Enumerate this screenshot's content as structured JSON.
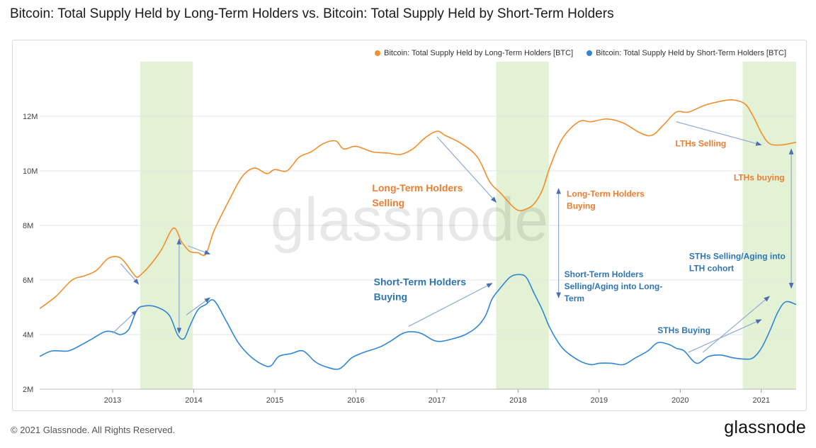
{
  "page": {
    "title": "Bitcoin: Total Supply Held by Long-Term Holders vs. Bitcoin: Total Supply Held by Short-Term Holders",
    "copyright": "© 2021 Glassnode. All Rights Reserved.",
    "brand": "glassnode",
    "watermark": "glassnode"
  },
  "colors": {
    "lth": "#f28e2b",
    "sth": "#2f86d6",
    "shade": "#e3f2d4",
    "annotation_orange": "#ed7d31",
    "annotation_blue": "#2e75b6",
    "arrow": "#8ea9d4",
    "grid": "#e6e6e6"
  },
  "chart_data": {
    "type": "line",
    "title": "Bitcoin: Total Supply Held by Long-Term Holders vs. Bitcoin: Total Supply Held by Short-Term Holders",
    "xlabel": "",
    "ylabel": "",
    "xlim": [
      2012.1,
      2021.43
    ],
    "ylim": [
      2000000,
      14000000
    ],
    "x_ticks": [
      2013,
      2014,
      2015,
      2016,
      2017,
      2018,
      2019,
      2020,
      2021
    ],
    "y_ticks": [
      {
        "value": 2000000,
        "label": "2M"
      },
      {
        "value": 4000000,
        "label": "4M"
      },
      {
        "value": 6000000,
        "label": "6M"
      },
      {
        "value": 8000000,
        "label": "8M"
      },
      {
        "value": 10000000,
        "label": "10M"
      },
      {
        "value": 12000000,
        "label": "12M"
      }
    ],
    "grid": true,
    "legend": "top-right",
    "shaded_ranges": [
      [
        2013.34,
        2013.99
      ],
      [
        2017.73,
        2018.38
      ],
      [
        2020.77,
        2021.43
      ]
    ],
    "series": [
      {
        "name": "Bitcoin: Total Supply Held by Long-Term Holders [BTC]",
        "color": "#f28e2b",
        "x": [
          2012.1,
          2012.3,
          2012.5,
          2012.65,
          2012.8,
          2012.95,
          2013.1,
          2013.25,
          2013.3,
          2013.35,
          2013.45,
          2013.6,
          2013.75,
          2013.85,
          2013.95,
          2014.05,
          2014.15,
          2014.25,
          2014.45,
          2014.6,
          2014.75,
          2014.9,
          2015.0,
          2015.15,
          2015.3,
          2015.45,
          2015.6,
          2015.75,
          2015.85,
          2016.0,
          2016.2,
          2016.4,
          2016.55,
          2016.7,
          2016.85,
          2017.0,
          2017.1,
          2017.3,
          2017.5,
          2017.65,
          2017.78,
          2017.9,
          2018.0,
          2018.1,
          2018.2,
          2018.3,
          2018.4,
          2018.55,
          2018.75,
          2018.9,
          2019.1,
          2019.3,
          2019.5,
          2019.65,
          2019.8,
          2019.95,
          2020.1,
          2020.3,
          2020.5,
          2020.65,
          2020.8,
          2020.9,
          2021.0,
          2021.1,
          2021.25,
          2021.43
        ],
        "values": [
          4950000,
          5400000,
          6000000,
          6150000,
          6350000,
          6800000,
          6800000,
          6250000,
          6100000,
          6200000,
          6500000,
          7100000,
          7900000,
          7400000,
          7050000,
          7000000,
          6950000,
          7800000,
          9000000,
          9800000,
          10100000,
          9900000,
          10050000,
          10000000,
          10500000,
          10700000,
          11000000,
          11100000,
          10800000,
          10900000,
          10700000,
          10650000,
          10600000,
          10800000,
          11200000,
          11450000,
          11300000,
          11000000,
          10500000,
          9600000,
          9200000,
          8800000,
          8550000,
          8600000,
          8800000,
          9300000,
          10200000,
          11200000,
          11800000,
          11800000,
          11900000,
          11750000,
          11400000,
          11300000,
          11700000,
          12150000,
          12150000,
          12400000,
          12550000,
          12600000,
          12450000,
          12000000,
          11400000,
          11000000,
          10950000,
          11050000
        ]
      },
      {
        "name": "Bitcoin: Total Supply Held by Short-Term Holders [BTC]",
        "color": "#2f86d6",
        "x": [
          2012.1,
          2012.25,
          2012.45,
          2012.6,
          2012.75,
          2012.9,
          2013.0,
          2013.1,
          2013.2,
          2013.3,
          2013.4,
          2013.55,
          2013.7,
          2013.8,
          2013.88,
          2013.95,
          2014.05,
          2014.15,
          2014.25,
          2014.4,
          2014.55,
          2014.7,
          2014.85,
          2014.95,
          2015.05,
          2015.2,
          2015.35,
          2015.5,
          2015.65,
          2015.8,
          2015.95,
          2016.1,
          2016.3,
          2016.45,
          2016.55,
          2016.65,
          2016.8,
          2016.95,
          2017.05,
          2017.2,
          2017.35,
          2017.5,
          2017.6,
          2017.68,
          2017.78,
          2017.9,
          2018.0,
          2018.1,
          2018.2,
          2018.3,
          2018.4,
          2018.55,
          2018.75,
          2018.9,
          2019.0,
          2019.15,
          2019.3,
          2019.45,
          2019.6,
          2019.72,
          2019.85,
          2019.95,
          2020.05,
          2020.2,
          2020.35,
          2020.5,
          2020.65,
          2020.8,
          2020.9,
          2021.0,
          2021.1,
          2021.2,
          2021.3,
          2021.43
        ],
        "values": [
          3200000,
          3400000,
          3400000,
          3600000,
          3850000,
          4100000,
          4100000,
          4000000,
          4200000,
          4900000,
          5050000,
          5000000,
          4700000,
          4000000,
          3850000,
          4300000,
          4900000,
          5100000,
          5250000,
          4500000,
          3700000,
          3200000,
          2900000,
          2850000,
          3200000,
          3300000,
          3400000,
          3000000,
          2800000,
          2750000,
          3150000,
          3350000,
          3550000,
          3800000,
          4000000,
          4100000,
          4050000,
          3800000,
          3750000,
          3850000,
          4000000,
          4300000,
          4700000,
          5300000,
          5700000,
          6100000,
          6200000,
          6100000,
          5500000,
          4900000,
          4200000,
          3500000,
          3050000,
          2900000,
          2950000,
          2950000,
          2900000,
          3150000,
          3400000,
          3700000,
          3650000,
          3500000,
          3400000,
          2950000,
          3200000,
          3250000,
          3150000,
          3100000,
          3150000,
          3500000,
          4100000,
          4800000,
          5200000,
          5100000
        ]
      }
    ]
  },
  "annotations": [
    {
      "id": "lth-selling",
      "lines": [
        "Long-Term Holders",
        "Selling"
      ],
      "color": "orange",
      "size": "large",
      "x": 2016.2,
      "y": 9250000
    },
    {
      "id": "sth-buying",
      "lines": [
        "Short-Term Holders",
        "Buying"
      ],
      "color": "blue",
      "size": "large",
      "x": 2016.22,
      "y": 5800000
    },
    {
      "id": "lth-buying-2018",
      "lines": [
        "Long-Term Holders",
        "Buying"
      ],
      "color": "orange",
      "size": "small",
      "x": 2018.6,
      "y": 9050000
    },
    {
      "id": "sth-selling-2018",
      "lines": [
        "Short-Term Holders",
        "Selling/Aging into Long-",
        "Term"
      ],
      "color": "blue",
      "size": "small",
      "x": 2018.57,
      "y": 6100000
    },
    {
      "id": "lths-selling-2020",
      "lines": [
        "LTHs Selling"
      ],
      "color": "orange",
      "size": "small",
      "x": 2019.94,
      "y": 10900000
    },
    {
      "id": "lths-buying-2021",
      "lines": [
        "LTHs buying"
      ],
      "color": "orange",
      "size": "small",
      "x": 2020.66,
      "y": 9650000
    },
    {
      "id": "sths-selling-2021",
      "lines": [
        "STHs Selling/Aging into",
        "LTH cohort"
      ],
      "color": "blue",
      "size": "small",
      "x": 2020.11,
      "y": 6760000
    },
    {
      "id": "sths-buying-2020",
      "lines": [
        "STHs Buying"
      ],
      "color": "blue",
      "size": "small",
      "x": 2019.72,
      "y": 4050000
    }
  ],
  "arrows": [
    {
      "from": [
        2013.1,
        6600000
      ],
      "to": [
        2013.32,
        5850000
      ],
      "heads": "end"
    },
    {
      "from": [
        2013.0,
        4050000
      ],
      "to": [
        2013.3,
        4880000
      ],
      "heads": "end"
    },
    {
      "from": [
        2013.82,
        7500000
      ],
      "to": [
        2013.82,
        4050000
      ],
      "heads": "both"
    },
    {
      "from": [
        2013.91,
        4720000
      ],
      "to": [
        2014.2,
        5350000
      ],
      "heads": "end"
    },
    {
      "from": [
        2013.93,
        7250000
      ],
      "to": [
        2014.2,
        6950000
      ],
      "heads": "end"
    },
    {
      "from": [
        2016.65,
        4300000
      ],
      "to": [
        2017.68,
        5880000
      ],
      "heads": "end"
    },
    {
      "from": [
        2017.0,
        11250000
      ],
      "to": [
        2017.73,
        8850000
      ],
      "heads": "end"
    },
    {
      "from": [
        2018.5,
        9350000
      ],
      "to": [
        2018.5,
        5350000
      ],
      "heads": "both"
    },
    {
      "from": [
        2020.1,
        3350000
      ],
      "to": [
        2021.0,
        4550000
      ],
      "heads": "end"
    },
    {
      "from": [
        2020.28,
        3350000
      ],
      "to": [
        2021.1,
        5400000
      ],
      "heads": "end"
    },
    {
      "from": [
        2019.95,
        11800000
      ],
      "to": [
        2021.0,
        10950000
      ],
      "heads": "end"
    },
    {
      "from": [
        2021.37,
        10800000
      ],
      "to": [
        2021.37,
        5700000
      ],
      "heads": "both"
    }
  ]
}
